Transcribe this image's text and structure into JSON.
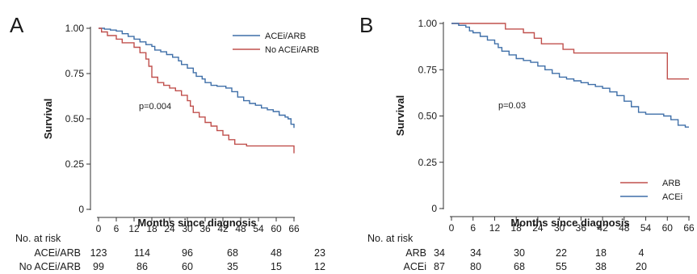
{
  "panels": [
    {
      "label": "A",
      "p_value": "p=0.004",
      "risk_header": "No. at risk",
      "risk_table": [
        {
          "name": "ACEi/ARB",
          "counts": [
            "123",
            "114",
            "96",
            "68",
            "48",
            "23"
          ]
        },
        {
          "name": "No ACEi/ARB",
          "counts": [
            "99",
            "86",
            "60",
            "35",
            "15",
            "12"
          ]
        }
      ]
    },
    {
      "label": "B",
      "p_value": "p=0.03",
      "risk_header": "No. at risk",
      "risk_table": [
        {
          "name": "ARB",
          "counts": [
            "34",
            "34",
            "30",
            "22",
            "18",
            "4"
          ]
        },
        {
          "name": "ACEi",
          "counts": [
            "87",
            "80",
            "68",
            "55",
            "38",
            "20"
          ]
        }
      ]
    }
  ],
  "chart_data": [
    {
      "type": "line",
      "step": true,
      "title": "",
      "xlabel": "Months since diagnosis",
      "ylabel": "Survival",
      "xlim": [
        0,
        66
      ],
      "ylim": [
        0,
        1
      ],
      "x_ticks": [
        "0",
        "6",
        "12",
        "18",
        "24",
        "30",
        "36",
        "42",
        "48",
        "54",
        "60",
        "66"
      ],
      "y_ticks": [
        "0",
        "0.25",
        "0.50",
        "0.75",
        "1.00"
      ],
      "y_tick_values": [
        0,
        0.25,
        0.5,
        0.75,
        1.0
      ],
      "legend_position": "top-right",
      "grid": false,
      "series": [
        {
          "name": "ACEi/ARB",
          "color": "#3f6fa8",
          "points": [
            [
              0,
              1.0
            ],
            [
              2,
              0.995
            ],
            [
              4,
              0.99
            ],
            [
              6,
              0.985
            ],
            [
              8,
              0.97
            ],
            [
              10,
              0.955
            ],
            [
              12,
              0.94
            ],
            [
              14,
              0.925
            ],
            [
              16,
              0.91
            ],
            [
              18,
              0.9
            ],
            [
              19,
              0.88
            ],
            [
              21,
              0.87
            ],
            [
              23,
              0.855
            ],
            [
              25,
              0.84
            ],
            [
              27,
              0.82
            ],
            [
              28,
              0.8
            ],
            [
              30,
              0.78
            ],
            [
              32,
              0.755
            ],
            [
              33,
              0.735
            ],
            [
              35,
              0.72
            ],
            [
              36,
              0.7
            ],
            [
              38,
              0.685
            ],
            [
              40,
              0.68
            ],
            [
              43,
              0.67
            ],
            [
              45,
              0.65
            ],
            [
              47,
              0.62
            ],
            [
              49,
              0.6
            ],
            [
              51,
              0.585
            ],
            [
              53,
              0.575
            ],
            [
              55,
              0.56
            ],
            [
              57,
              0.55
            ],
            [
              59,
              0.54
            ],
            [
              61,
              0.52
            ],
            [
              63,
              0.51
            ],
            [
              64,
              0.5
            ],
            [
              65,
              0.47
            ],
            [
              66,
              0.45
            ]
          ]
        },
        {
          "name": "No ACEi/ARB",
          "color": "#c0504d",
          "points": [
            [
              0,
              1.0
            ],
            [
              1,
              0.98
            ],
            [
              3,
              0.96
            ],
            [
              6,
              0.94
            ],
            [
              8,
              0.92
            ],
            [
              12,
              0.895
            ],
            [
              14,
              0.865
            ],
            [
              16,
              0.83
            ],
            [
              17,
              0.79
            ],
            [
              18,
              0.73
            ],
            [
              20,
              0.7
            ],
            [
              22,
              0.685
            ],
            [
              24,
              0.67
            ],
            [
              26,
              0.655
            ],
            [
              28,
              0.63
            ],
            [
              30,
              0.6
            ],
            [
              31,
              0.57
            ],
            [
              32,
              0.535
            ],
            [
              34,
              0.51
            ],
            [
              36,
              0.48
            ],
            [
              38,
              0.46
            ],
            [
              40,
              0.435
            ],
            [
              42,
              0.41
            ],
            [
              44,
              0.385
            ],
            [
              46,
              0.36
            ],
            [
              50,
              0.35
            ],
            [
              55,
              0.35
            ],
            [
              60,
              0.35
            ],
            [
              65,
              0.35
            ],
            [
              66,
              0.31
            ]
          ]
        }
      ]
    },
    {
      "type": "line",
      "step": true,
      "title": "",
      "xlabel": "Months since diagnosis",
      "ylabel": "Survival",
      "xlim": [
        0,
        66
      ],
      "ylim": [
        0,
        1
      ],
      "x_ticks": [
        "0",
        "6",
        "12",
        "18",
        "24",
        "30",
        "36",
        "42",
        "48",
        "54",
        "60",
        "66"
      ],
      "y_ticks": [
        "0",
        "0.25",
        "0.50",
        "0.75",
        "1.00"
      ],
      "y_tick_values": [
        0,
        0.25,
        0.5,
        0.75,
        1.0
      ],
      "legend_position": "bottom-right",
      "grid": false,
      "series": [
        {
          "name": "ARB",
          "color": "#c0504d",
          "points": [
            [
              0,
              1.0
            ],
            [
              14,
              1.0
            ],
            [
              15,
              0.97
            ],
            [
              20,
              0.95
            ],
            [
              23,
              0.92
            ],
            [
              25,
              0.89
            ],
            [
              31,
              0.86
            ],
            [
              34,
              0.84
            ],
            [
              59,
              0.84
            ],
            [
              60,
              0.7
            ],
            [
              66,
              0.7
            ]
          ]
        },
        {
          "name": "ACEi",
          "color": "#3f6fa8",
          "points": [
            [
              0,
              1.0
            ],
            [
              2,
              0.99
            ],
            [
              4,
              0.98
            ],
            [
              5,
              0.96
            ],
            [
              6,
              0.95
            ],
            [
              8,
              0.93
            ],
            [
              10,
              0.91
            ],
            [
              12,
              0.89
            ],
            [
              13,
              0.87
            ],
            [
              14,
              0.85
            ],
            [
              16,
              0.83
            ],
            [
              18,
              0.81
            ],
            [
              20,
              0.8
            ],
            [
              22,
              0.79
            ],
            [
              24,
              0.77
            ],
            [
              26,
              0.75
            ],
            [
              28,
              0.73
            ],
            [
              30,
              0.71
            ],
            [
              32,
              0.7
            ],
            [
              34,
              0.69
            ],
            [
              36,
              0.68
            ],
            [
              38,
              0.67
            ],
            [
              40,
              0.66
            ],
            [
              42,
              0.65
            ],
            [
              44,
              0.63
            ],
            [
              46,
              0.61
            ],
            [
              48,
              0.58
            ],
            [
              50,
              0.55
            ],
            [
              52,
              0.52
            ],
            [
              54,
              0.51
            ],
            [
              57,
              0.51
            ],
            [
              59,
              0.5
            ],
            [
              61,
              0.48
            ],
            [
              63,
              0.45
            ],
            [
              65,
              0.44
            ],
            [
              66,
              0.44
            ]
          ]
        }
      ]
    }
  ]
}
